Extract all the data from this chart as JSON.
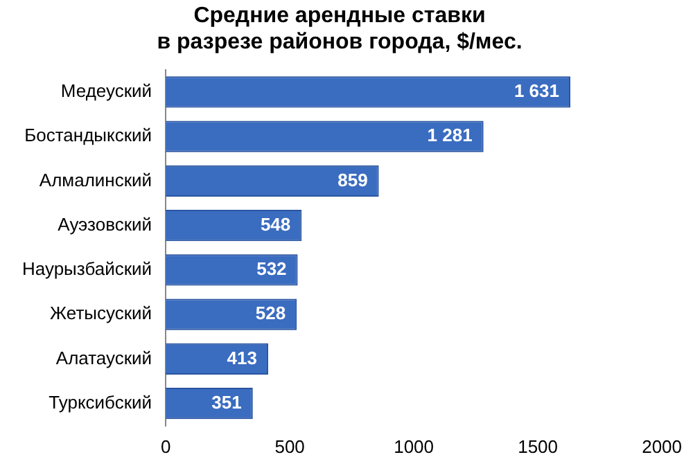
{
  "chart_data": {
    "type": "bar",
    "orientation": "horizontal",
    "title": "Средние арендные ставки\nв разрезе районов города, $/мес.",
    "categories": [
      "Медеуский",
      "Бостандыкский",
      "Алмалинский",
      "Ауэзовский",
      "Наурызбайский",
      "Жетысуский",
      "Алатауский",
      "Турксибский"
    ],
    "values": [
      1631,
      1281,
      859,
      548,
      532,
      528,
      413,
      351
    ],
    "value_labels": [
      "1 631",
      "1 281",
      "859",
      "548",
      "532",
      "528",
      "413",
      "351"
    ],
    "color": "#3a6cc0",
    "xlim": [
      0,
      2000
    ],
    "xticks": [
      0,
      500,
      1000,
      1500,
      2000
    ],
    "grid": false,
    "legend": false
  }
}
